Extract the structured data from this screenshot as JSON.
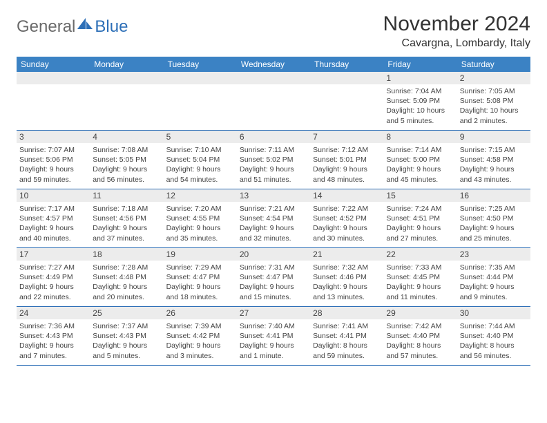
{
  "logo": {
    "part1": "General",
    "part2": "Blue"
  },
  "title": "November 2024",
  "location": "Cavargna, Lombardy, Italy",
  "colors": {
    "header_bg": "#3b82c4",
    "header_text": "#ffffff",
    "daynum_bg": "#ececec",
    "text": "#444444",
    "rule": "#2d6fb7",
    "logo_gray": "#6a6a6a",
    "logo_blue": "#2d6fb7"
  },
  "daysOfWeek": [
    "Sunday",
    "Monday",
    "Tuesday",
    "Wednesday",
    "Thursday",
    "Friday",
    "Saturday"
  ],
  "weeks": [
    [
      {
        "n": "",
        "sunrise": "",
        "sunset": "",
        "daylight": ""
      },
      {
        "n": "",
        "sunrise": "",
        "sunset": "",
        "daylight": ""
      },
      {
        "n": "",
        "sunrise": "",
        "sunset": "",
        "daylight": ""
      },
      {
        "n": "",
        "sunrise": "",
        "sunset": "",
        "daylight": ""
      },
      {
        "n": "",
        "sunrise": "",
        "sunset": "",
        "daylight": ""
      },
      {
        "n": "1",
        "sunrise": "Sunrise: 7:04 AM",
        "sunset": "Sunset: 5:09 PM",
        "daylight": "Daylight: 10 hours and 5 minutes."
      },
      {
        "n": "2",
        "sunrise": "Sunrise: 7:05 AM",
        "sunset": "Sunset: 5:08 PM",
        "daylight": "Daylight: 10 hours and 2 minutes."
      }
    ],
    [
      {
        "n": "3",
        "sunrise": "Sunrise: 7:07 AM",
        "sunset": "Sunset: 5:06 PM",
        "daylight": "Daylight: 9 hours and 59 minutes."
      },
      {
        "n": "4",
        "sunrise": "Sunrise: 7:08 AM",
        "sunset": "Sunset: 5:05 PM",
        "daylight": "Daylight: 9 hours and 56 minutes."
      },
      {
        "n": "5",
        "sunrise": "Sunrise: 7:10 AM",
        "sunset": "Sunset: 5:04 PM",
        "daylight": "Daylight: 9 hours and 54 minutes."
      },
      {
        "n": "6",
        "sunrise": "Sunrise: 7:11 AM",
        "sunset": "Sunset: 5:02 PM",
        "daylight": "Daylight: 9 hours and 51 minutes."
      },
      {
        "n": "7",
        "sunrise": "Sunrise: 7:12 AM",
        "sunset": "Sunset: 5:01 PM",
        "daylight": "Daylight: 9 hours and 48 minutes."
      },
      {
        "n": "8",
        "sunrise": "Sunrise: 7:14 AM",
        "sunset": "Sunset: 5:00 PM",
        "daylight": "Daylight: 9 hours and 45 minutes."
      },
      {
        "n": "9",
        "sunrise": "Sunrise: 7:15 AM",
        "sunset": "Sunset: 4:58 PM",
        "daylight": "Daylight: 9 hours and 43 minutes."
      }
    ],
    [
      {
        "n": "10",
        "sunrise": "Sunrise: 7:17 AM",
        "sunset": "Sunset: 4:57 PM",
        "daylight": "Daylight: 9 hours and 40 minutes."
      },
      {
        "n": "11",
        "sunrise": "Sunrise: 7:18 AM",
        "sunset": "Sunset: 4:56 PM",
        "daylight": "Daylight: 9 hours and 37 minutes."
      },
      {
        "n": "12",
        "sunrise": "Sunrise: 7:20 AM",
        "sunset": "Sunset: 4:55 PM",
        "daylight": "Daylight: 9 hours and 35 minutes."
      },
      {
        "n": "13",
        "sunrise": "Sunrise: 7:21 AM",
        "sunset": "Sunset: 4:54 PM",
        "daylight": "Daylight: 9 hours and 32 minutes."
      },
      {
        "n": "14",
        "sunrise": "Sunrise: 7:22 AM",
        "sunset": "Sunset: 4:52 PM",
        "daylight": "Daylight: 9 hours and 30 minutes."
      },
      {
        "n": "15",
        "sunrise": "Sunrise: 7:24 AM",
        "sunset": "Sunset: 4:51 PM",
        "daylight": "Daylight: 9 hours and 27 minutes."
      },
      {
        "n": "16",
        "sunrise": "Sunrise: 7:25 AM",
        "sunset": "Sunset: 4:50 PM",
        "daylight": "Daylight: 9 hours and 25 minutes."
      }
    ],
    [
      {
        "n": "17",
        "sunrise": "Sunrise: 7:27 AM",
        "sunset": "Sunset: 4:49 PM",
        "daylight": "Daylight: 9 hours and 22 minutes."
      },
      {
        "n": "18",
        "sunrise": "Sunrise: 7:28 AM",
        "sunset": "Sunset: 4:48 PM",
        "daylight": "Daylight: 9 hours and 20 minutes."
      },
      {
        "n": "19",
        "sunrise": "Sunrise: 7:29 AM",
        "sunset": "Sunset: 4:47 PM",
        "daylight": "Daylight: 9 hours and 18 minutes."
      },
      {
        "n": "20",
        "sunrise": "Sunrise: 7:31 AM",
        "sunset": "Sunset: 4:47 PM",
        "daylight": "Daylight: 9 hours and 15 minutes."
      },
      {
        "n": "21",
        "sunrise": "Sunrise: 7:32 AM",
        "sunset": "Sunset: 4:46 PM",
        "daylight": "Daylight: 9 hours and 13 minutes."
      },
      {
        "n": "22",
        "sunrise": "Sunrise: 7:33 AM",
        "sunset": "Sunset: 4:45 PM",
        "daylight": "Daylight: 9 hours and 11 minutes."
      },
      {
        "n": "23",
        "sunrise": "Sunrise: 7:35 AM",
        "sunset": "Sunset: 4:44 PM",
        "daylight": "Daylight: 9 hours and 9 minutes."
      }
    ],
    [
      {
        "n": "24",
        "sunrise": "Sunrise: 7:36 AM",
        "sunset": "Sunset: 4:43 PM",
        "daylight": "Daylight: 9 hours and 7 minutes."
      },
      {
        "n": "25",
        "sunrise": "Sunrise: 7:37 AM",
        "sunset": "Sunset: 4:43 PM",
        "daylight": "Daylight: 9 hours and 5 minutes."
      },
      {
        "n": "26",
        "sunrise": "Sunrise: 7:39 AM",
        "sunset": "Sunset: 4:42 PM",
        "daylight": "Daylight: 9 hours and 3 minutes."
      },
      {
        "n": "27",
        "sunrise": "Sunrise: 7:40 AM",
        "sunset": "Sunset: 4:41 PM",
        "daylight": "Daylight: 9 hours and 1 minute."
      },
      {
        "n": "28",
        "sunrise": "Sunrise: 7:41 AM",
        "sunset": "Sunset: 4:41 PM",
        "daylight": "Daylight: 8 hours and 59 minutes."
      },
      {
        "n": "29",
        "sunrise": "Sunrise: 7:42 AM",
        "sunset": "Sunset: 4:40 PM",
        "daylight": "Daylight: 8 hours and 57 minutes."
      },
      {
        "n": "30",
        "sunrise": "Sunrise: 7:44 AM",
        "sunset": "Sunset: 4:40 PM",
        "daylight": "Daylight: 8 hours and 56 minutes."
      }
    ]
  ]
}
